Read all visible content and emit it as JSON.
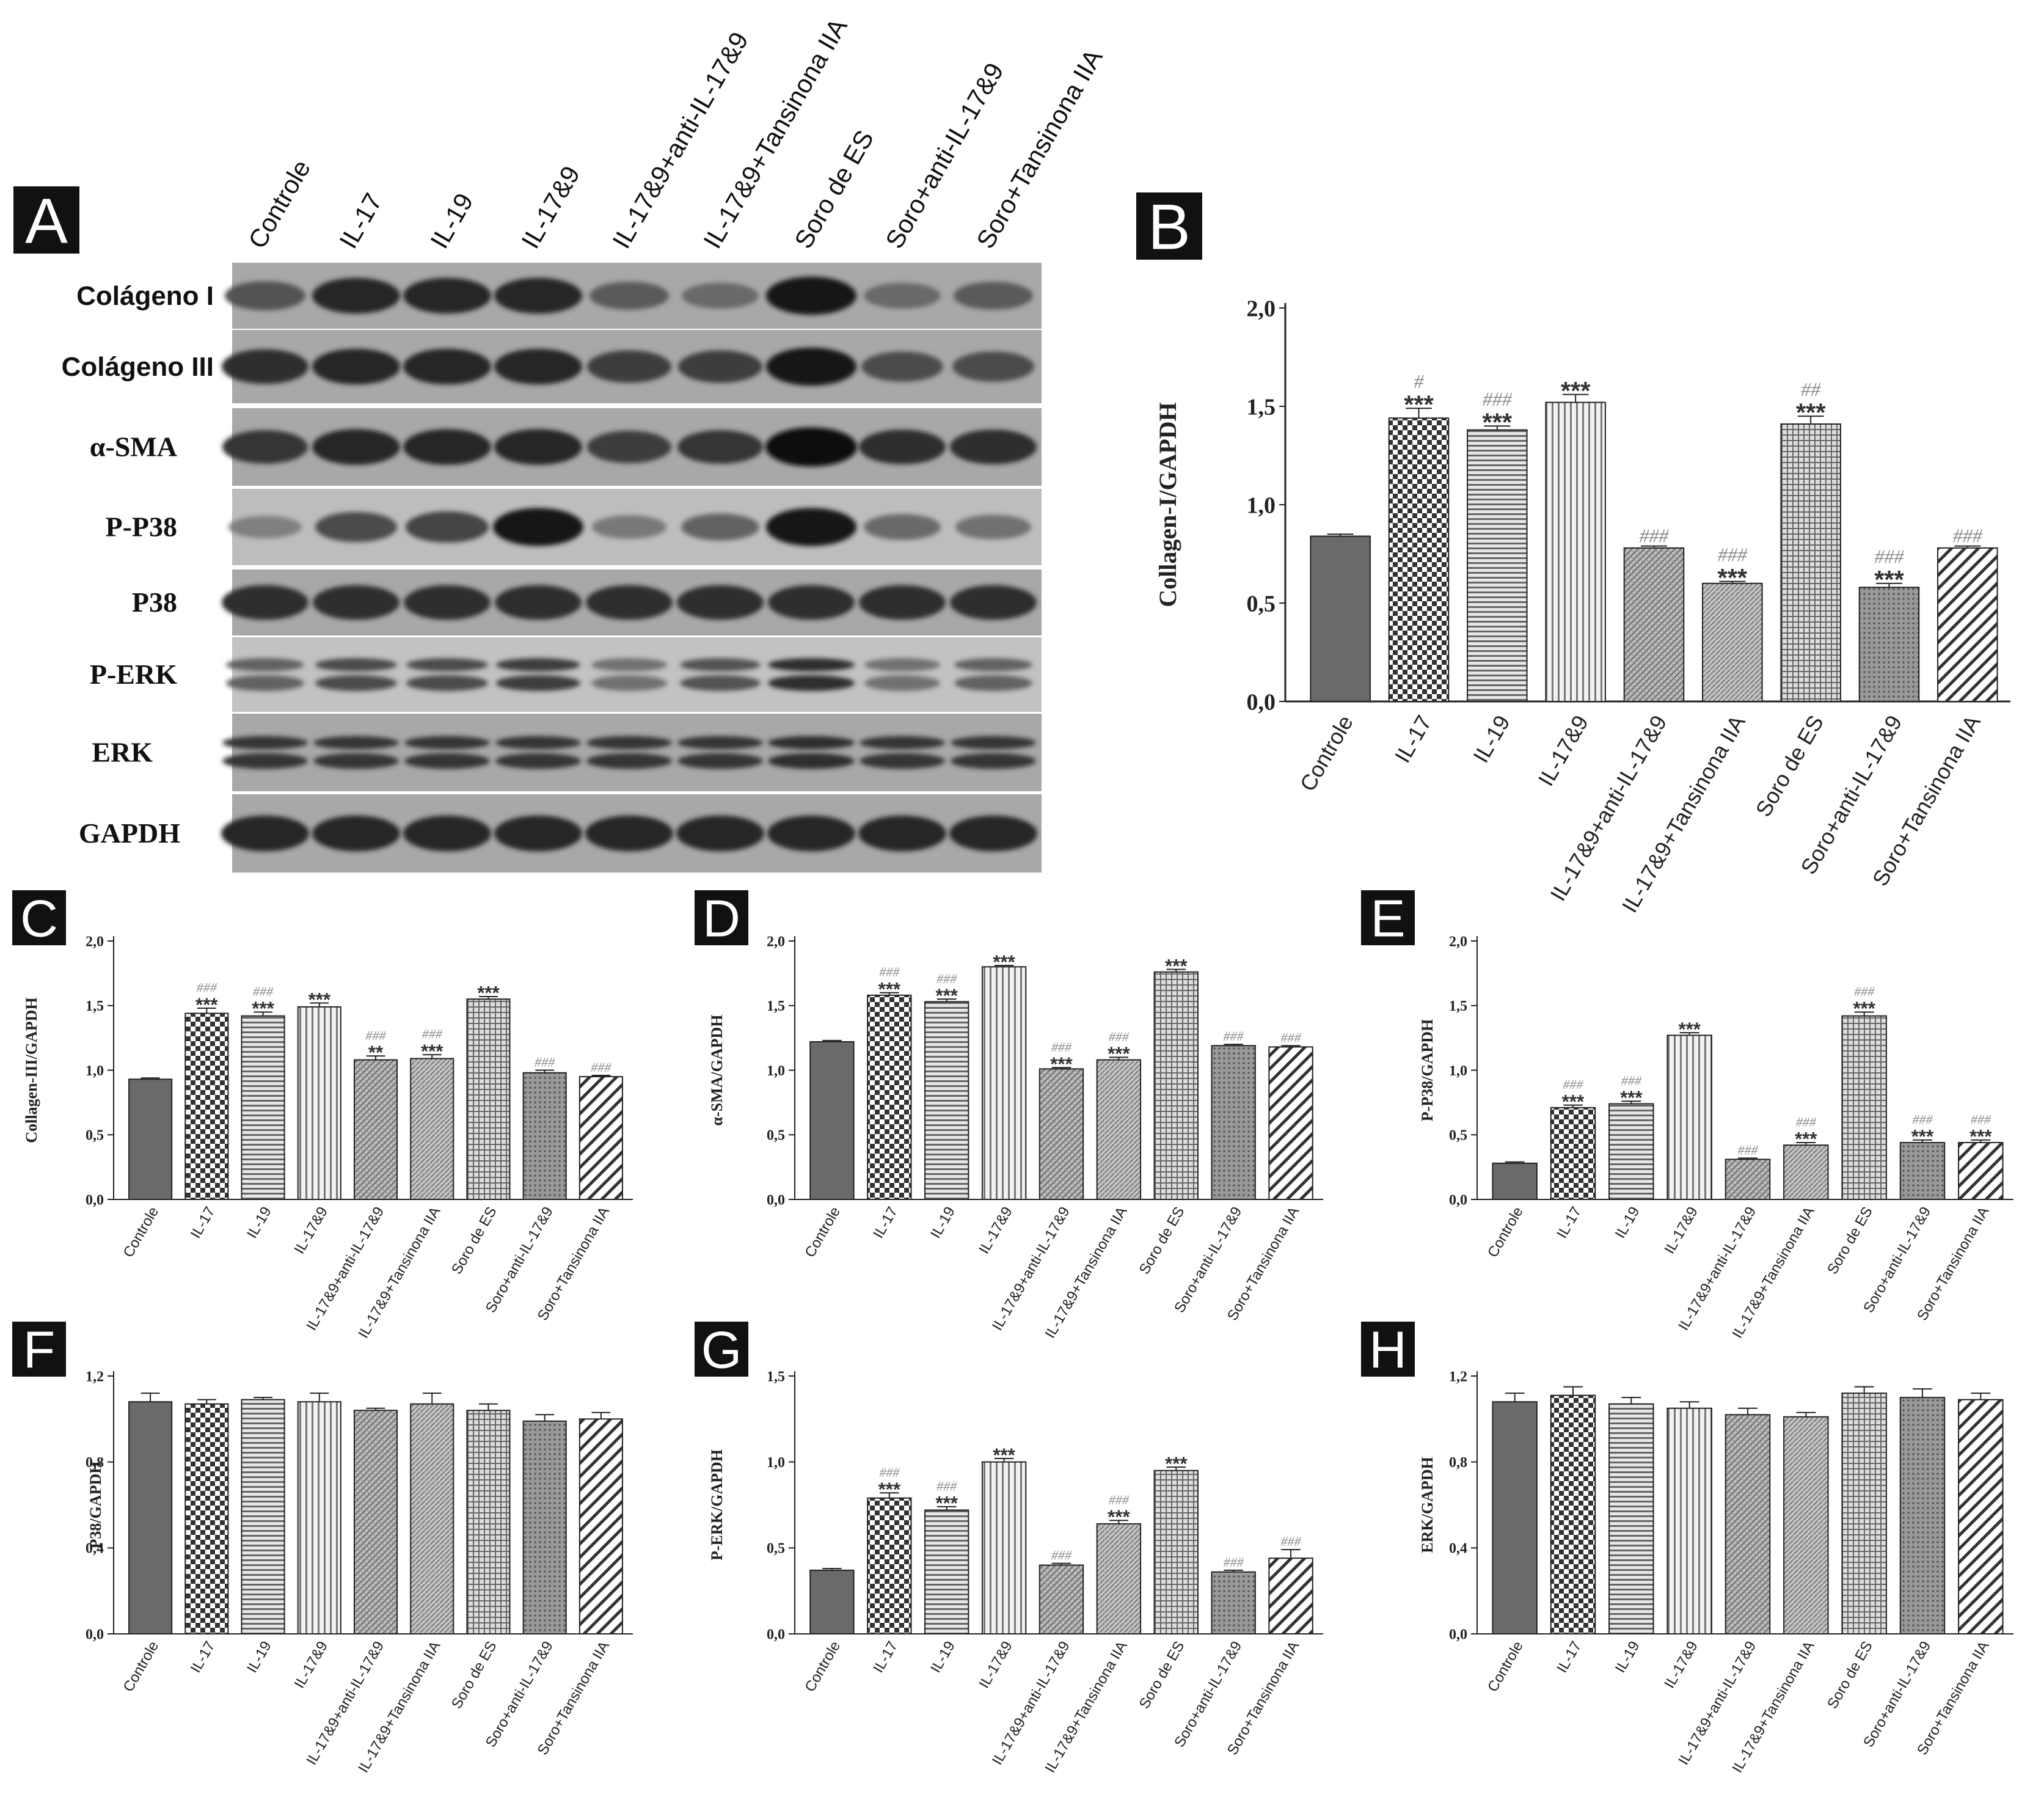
{
  "groups": [
    "Controle",
    "IL-17",
    "IL-19",
    "IL-17&9",
    "IL-17&9+anti-IL-17&9",
    "IL-17&9+Tansinona IIA",
    "Soro de ES",
    "Soro+anti-IL-17&9",
    "Soro+Tansinona IIA"
  ],
  "blot": {
    "panel": "A",
    "rows": [
      "Colágeno I",
      "Colágeno III",
      "α-SMA",
      "P-P38",
      "P38",
      "P-ERK",
      "ERK",
      "GAPDH"
    ],
    "band_intensity": [
      [
        0.55,
        0.85,
        0.85,
        0.85,
        0.5,
        0.4,
        0.95,
        0.4,
        0.5
      ],
      [
        0.8,
        0.85,
        0.85,
        0.85,
        0.7,
        0.7,
        0.95,
        0.6,
        0.6
      ],
      [
        0.75,
        0.85,
        0.85,
        0.85,
        0.7,
        0.75,
        1.0,
        0.8,
        0.8
      ],
      [
        0.25,
        0.6,
        0.65,
        0.95,
        0.3,
        0.45,
        0.95,
        0.4,
        0.35
      ],
      [
        0.8,
        0.8,
        0.8,
        0.8,
        0.8,
        0.8,
        0.8,
        0.8,
        0.8
      ],
      [
        0.45,
        0.6,
        0.6,
        0.7,
        0.35,
        0.55,
        0.8,
        0.35,
        0.45
      ],
      [
        0.75,
        0.75,
        0.75,
        0.75,
        0.75,
        0.75,
        0.8,
        0.75,
        0.75
      ],
      [
        0.85,
        0.85,
        0.85,
        0.85,
        0.85,
        0.85,
        0.85,
        0.85,
        0.85
      ]
    ]
  },
  "fill_styles": [
    "dark",
    "checker",
    "hlines",
    "vlines",
    "dgrid",
    "diag",
    "grid",
    "dots",
    "bigdiag"
  ],
  "chart_data": [
    {
      "panel": "B",
      "type": "bar",
      "ylabel": "Collagen-I/GAPDH",
      "ylim": [
        0,
        2.0
      ],
      "ticks": [
        "0,0",
        "0,5",
        "1,0",
        "1,5",
        "2,0"
      ],
      "values": [
        0.84,
        1.44,
        1.38,
        1.52,
        0.78,
        0.6,
        1.41,
        0.58,
        0.78
      ],
      "errors": [
        0.01,
        0.05,
        0.02,
        0.04,
        0.01,
        0.01,
        0.04,
        0.02,
        0.01
      ],
      "stars": [
        "",
        "***",
        "***",
        "***",
        "",
        "***",
        "***",
        "***",
        ""
      ],
      "hashes": [
        "",
        "#",
        "###",
        "",
        "###",
        "###",
        "##",
        "###",
        "###"
      ]
    },
    {
      "panel": "C",
      "type": "bar",
      "ylabel": "Collagen-III/GAPDH",
      "ylim": [
        0,
        2.0
      ],
      "ticks": [
        "0,0",
        "0,5",
        "1,0",
        "1,5",
        "2,0"
      ],
      "values": [
        0.93,
        1.44,
        1.42,
        1.49,
        1.08,
        1.09,
        1.55,
        0.98,
        0.95
      ],
      "errors": [
        0.01,
        0.04,
        0.03,
        0.03,
        0.03,
        0.03,
        0.02,
        0.02,
        0.01
      ],
      "stars": [
        "",
        "***",
        "***",
        "***",
        "**",
        "***",
        "***",
        "",
        ""
      ],
      "hashes": [
        "",
        "###",
        "###",
        "",
        "###",
        "###",
        "",
        "###",
        "###"
      ]
    },
    {
      "panel": "D",
      "type": "bar",
      "ylabel": "α-SMA/GAPDH",
      "ylim": [
        0,
        2.0
      ],
      "ticks": [
        "0,0",
        "0,5",
        "1,0",
        "1,5",
        "2,0"
      ],
      "values": [
        1.22,
        1.58,
        1.53,
        1.8,
        1.01,
        1.08,
        1.76,
        1.19,
        1.18
      ],
      "errors": [
        0.01,
        0.02,
        0.02,
        0.01,
        0.01,
        0.02,
        0.02,
        0.01,
        0.01
      ],
      "stars": [
        "",
        "***",
        "***",
        "***",
        "***",
        "***",
        "***",
        "",
        ""
      ],
      "hashes": [
        "",
        "###",
        "###",
        "",
        "###",
        "###",
        "",
        "###",
        "###"
      ]
    },
    {
      "panel": "E",
      "type": "bar",
      "ylabel": "P-P38/GAPDH",
      "ylim": [
        0,
        2.0
      ],
      "ticks": [
        "0,0",
        "0,5",
        "1,0",
        "1,5",
        "2,0"
      ],
      "values": [
        0.28,
        0.71,
        0.74,
        1.27,
        0.31,
        0.42,
        1.42,
        0.44,
        0.44
      ],
      "errors": [
        0.01,
        0.02,
        0.02,
        0.02,
        0.01,
        0.02,
        0.03,
        0.02,
        0.02
      ],
      "stars": [
        "",
        "***",
        "***",
        "***",
        "",
        "***",
        "***",
        "***",
        "***"
      ],
      "hashes": [
        "",
        "###",
        "###",
        "",
        "###",
        "###",
        "###",
        "###",
        "###"
      ]
    },
    {
      "panel": "F",
      "type": "bar",
      "ylabel": "P38/GAPDH",
      "ylim": [
        0,
        1.2
      ],
      "ticks": [
        "0,0",
        "0,4",
        "0,8",
        "1,2"
      ],
      "values": [
        1.08,
        1.07,
        1.09,
        1.08,
        1.04,
        1.07,
        1.04,
        0.99,
        1.0
      ],
      "errors": [
        0.04,
        0.02,
        0.01,
        0.04,
        0.01,
        0.05,
        0.03,
        0.03,
        0.03
      ],
      "stars": [
        "",
        "",
        "",
        "",
        "",
        "",
        "",
        "",
        ""
      ],
      "hashes": [
        "",
        "",
        "",
        "",
        "",
        "",
        "",
        "",
        ""
      ]
    },
    {
      "panel": "G",
      "type": "bar",
      "ylabel": "P-ERK/GAPDH",
      "ylim": [
        0,
        1.5
      ],
      "ticks": [
        "0,0",
        "0,5",
        "1,0",
        "1,5"
      ],
      "values": [
        0.37,
        0.79,
        0.72,
        1.0,
        0.4,
        0.64,
        0.95,
        0.36,
        0.44
      ],
      "errors": [
        0.01,
        0.03,
        0.02,
        0.02,
        0.01,
        0.02,
        0.02,
        0.01,
        0.05
      ],
      "stars": [
        "",
        "***",
        "***",
        "***",
        "",
        "***",
        "***",
        "",
        ""
      ],
      "hashes": [
        "",
        "###",
        "###",
        "",
        "###",
        "###",
        "",
        "###",
        "###"
      ]
    },
    {
      "panel": "H",
      "type": "bar",
      "ylabel": "ERK/GAPDH",
      "ylim": [
        0,
        1.2
      ],
      "ticks": [
        "0,0",
        "0,4",
        "0,8",
        "1,2"
      ],
      "values": [
        1.08,
        1.11,
        1.07,
        1.05,
        1.02,
        1.01,
        1.12,
        1.1,
        1.09
      ],
      "errors": [
        0.04,
        0.04,
        0.03,
        0.03,
        0.03,
        0.02,
        0.03,
        0.04,
        0.03
      ],
      "stars": [
        "",
        "",
        "",
        "",
        "",
        "",
        "",
        "",
        ""
      ],
      "hashes": [
        "",
        "",
        "",
        "",
        "",
        "",
        "",
        "",
        ""
      ]
    }
  ]
}
